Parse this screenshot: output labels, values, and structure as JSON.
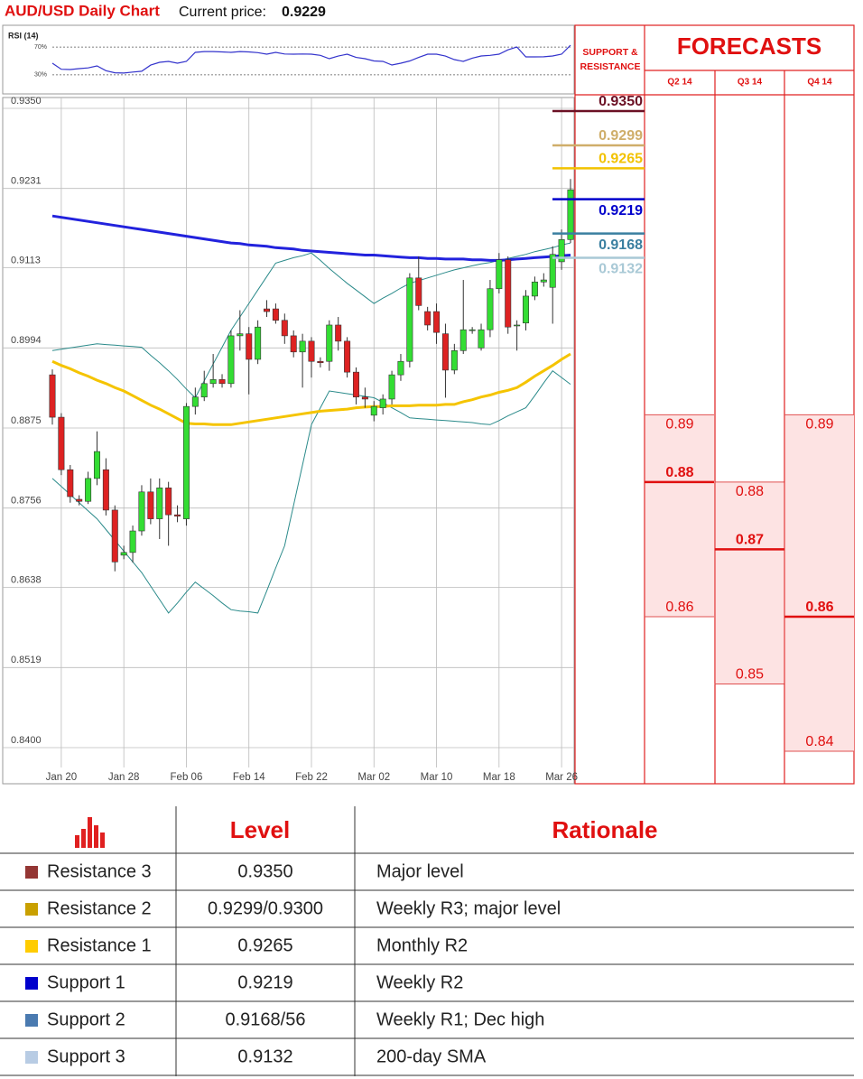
{
  "header": {
    "title": "AUD/USD Daily Chart",
    "price_label": "Current price:",
    "current_price": 0.9229
  },
  "chart_data": [
    {
      "type": "line",
      "title": "RSI (14)",
      "color": "#3333cc",
      "ylim": [
        0,
        100
      ],
      "yticks": [
        {
          "value": 70,
          "label": "70%"
        },
        {
          "value": 30,
          "label": "30%"
        }
      ],
      "values": [
        46.8,
        38,
        37.7,
        39,
        40,
        42.9,
        36,
        33,
        32.6,
        34,
        35.2,
        44,
        48,
        49.4,
        46.8,
        49.4,
        62.3,
        63.5,
        63.5,
        63,
        62.3,
        63.5,
        63,
        62,
        59.7,
        62.3,
        60,
        59.7,
        60,
        59.7,
        58,
        53.2,
        57,
        59.7,
        55,
        53.2,
        50,
        49.4,
        44.2,
        46.8,
        50,
        55,
        59.7,
        59.7,
        57,
        52,
        49.4,
        54,
        57.1,
        58,
        59.7,
        66,
        70,
        55.8,
        55.8,
        56,
        57.1,
        59.7,
        72.6
      ]
    },
    {
      "type": "candlestick",
      "up_color": "#33dd33",
      "down_color": "#dd2222",
      "grid": true,
      "ylim": [
        0.84,
        0.935
      ],
      "yticks": [
        {
          "value": 0.935,
          "label": "0.9350"
        },
        0.9231,
        0.9113,
        0.8994,
        0.8875,
        0.8756,
        0.8638,
        0.8519,
        {
          "value": 0.84,
          "label": "0.8400"
        }
      ],
      "categories": [
        null,
        "Jan 20",
        null,
        null,
        null,
        null,
        null,
        null,
        "Jan 28",
        null,
        null,
        null,
        null,
        null,
        null,
        "Feb 06",
        null,
        null,
        null,
        null,
        null,
        null,
        "Feb 14",
        null,
        null,
        null,
        null,
        null,
        null,
        "Feb 22",
        null,
        null,
        null,
        null,
        null,
        null,
        "Mar 02",
        null,
        null,
        null,
        null,
        null,
        null,
        "Mar 10",
        null,
        null,
        null,
        null,
        null,
        null,
        "Mar 18",
        null,
        null,
        null,
        null,
        null,
        null,
        "Mar 26",
        null
      ],
      "open": [
        0.8954,
        0.8891,
        0.8813,
        0.8769,
        0.8766,
        0.88,
        0.8813,
        0.8753,
        0.8686,
        0.869,
        0.8722,
        0.878,
        0.874,
        0.8786,
        0.8746,
        0.874,
        0.8907,
        0.8921,
        0.8941,
        0.8947,
        0.8941,
        0.9012,
        0.9015,
        0.8977,
        0.9052,
        0.9052,
        0.9035,
        0.9012,
        0.8988,
        0.9004,
        0.8974,
        0.8974,
        0.9028,
        0.9004,
        0.8958,
        0.8921,
        0.8894,
        0.8905,
        0.8918,
        0.8954,
        0.8974,
        0.9098,
        0.9048,
        0.9048,
        0.9015,
        0.8961,
        0.899,
        0.9021,
        0.8994,
        0.9021,
        0.9082,
        0.9125,
        0.9028,
        0.9031,
        0.9071,
        0.9092,
        0.9084,
        0.9122,
        0.9155
      ],
      "high": [
        0.8962,
        0.8897,
        0.882,
        0.8775,
        0.881,
        0.887,
        0.883,
        0.876,
        0.87,
        0.873,
        0.879,
        0.88,
        0.88,
        0.8795,
        0.876,
        0.8912,
        0.8935,
        0.896,
        0.8985,
        0.8955,
        0.902,
        0.905,
        0.9025,
        0.9035,
        0.9065,
        0.906,
        0.9045,
        0.902,
        0.9015,
        0.901,
        0.898,
        0.9035,
        0.904,
        0.901,
        0.8965,
        0.8935,
        0.8915,
        0.8925,
        0.896,
        0.8985,
        0.9105,
        0.913,
        0.9055,
        0.906,
        0.903,
        0.9,
        0.9095,
        0.9025,
        0.903,
        0.9095,
        0.9135,
        0.913,
        0.9035,
        0.908,
        0.91,
        0.9105,
        0.9145,
        0.917,
        0.9245
      ],
      "low": [
        0.888,
        0.8805,
        0.8764,
        0.876,
        0.8762,
        0.879,
        0.8745,
        0.8662,
        0.868,
        0.8675,
        0.8715,
        0.8732,
        0.871,
        0.87,
        0.8735,
        0.873,
        0.8895,
        0.8915,
        0.8935,
        0.8935,
        0.8935,
        0.899,
        0.8925,
        0.897,
        0.904,
        0.903,
        0.9,
        0.898,
        0.8935,
        0.895,
        0.8965,
        0.896,
        0.899,
        0.895,
        0.891,
        0.8905,
        0.8885,
        0.8895,
        0.891,
        0.8945,
        0.8965,
        0.905,
        0.902,
        0.9,
        0.892,
        0.8955,
        0.8985,
        0.9015,
        0.899,
        0.901,
        0.9075,
        0.9015,
        0.899,
        0.902,
        0.9065,
        0.9085,
        0.903,
        0.911,
        0.915
      ],
      "close": [
        0.8891,
        0.8813,
        0.8773,
        0.8766,
        0.88,
        0.884,
        0.8753,
        0.8676,
        0.869,
        0.8722,
        0.878,
        0.874,
        0.8786,
        0.8746,
        0.8744,
        0.8907,
        0.8921,
        0.8941,
        0.8947,
        0.8941,
        0.9012,
        0.9015,
        0.8977,
        0.9025,
        0.9048,
        0.9035,
        0.9012,
        0.8988,
        0.9004,
        0.8974,
        0.8972,
        0.9028,
        0.9004,
        0.8958,
        0.8921,
        0.8918,
        0.8907,
        0.8918,
        0.8954,
        0.8974,
        0.9098,
        0.9057,
        0.9028,
        0.9017,
        0.8961,
        0.899,
        0.9021,
        0.9021,
        0.9021,
        0.9082,
        0.9125,
        0.9025,
        0.9028,
        0.9071,
        0.9092,
        0.9095,
        0.9133,
        0.9155,
        0.9229
      ],
      "overlays": [
        {
          "color": "#2a8a8a",
          "width": 1,
          "values": [
            0.899,
            0.8992,
            0.8994,
            0.8996,
            0.8998,
            0.9,
            0.8999,
            0.8998,
            0.8997,
            0.8996,
            0.8995,
            0.8983,
            0.8972,
            0.896,
            0.8947,
            0.8933,
            0.892,
            0.8945,
            0.897,
            0.8995,
            0.902,
            0.904,
            0.906,
            0.908,
            0.91,
            0.912,
            0.9124,
            0.9128,
            0.9131,
            0.9135,
            0.9124,
            0.9112,
            0.9101,
            0.909,
            0.908,
            0.907,
            0.906,
            0.9068,
            0.9075,
            0.9083,
            0.909,
            0.9094,
            0.9098,
            0.9102,
            0.9106,
            0.911,
            0.9113,
            0.9116,
            0.9119,
            0.9121,
            0.9124,
            0.9127,
            0.913,
            0.9133,
            0.9137,
            0.914,
            0.9143,
            0.9147,
            0.915
          ]
        },
        {
          "color": "#2a8a8a",
          "width": 1,
          "values": [
            0.88,
            0.8788,
            0.8776,
            0.8764,
            0.8752,
            0.874,
            0.8724,
            0.8708,
            0.8692,
            0.8676,
            0.866,
            0.864,
            0.862,
            0.86,
            0.8615,
            0.8631,
            0.8646,
            0.8636,
            0.8626,
            0.8615,
            0.8605,
            0.8603,
            0.8602,
            0.86,
            0.8633,
            0.8667,
            0.87,
            0.876,
            0.882,
            0.888,
            0.8905,
            0.893,
            0.8928,
            0.8926,
            0.8924,
            0.8922,
            0.892,
            0.8913,
            0.8905,
            0.8898,
            0.889,
            0.8889,
            0.8888,
            0.8887,
            0.8886,
            0.8885,
            0.8884,
            0.8883,
            0.8881,
            0.888,
            0.8886,
            0.8893,
            0.8899,
            0.8905,
            0.8923,
            0.8942,
            0.896,
            0.895,
            0.894
          ]
        },
        {
          "color": "#f5c400",
          "width": 3,
          "values": [
            0.8974,
            0.8968,
            0.8963,
            0.8957,
            0.8952,
            0.8946,
            0.8941,
            0.8935,
            0.893,
            0.8923,
            0.8916,
            0.8909,
            0.8903,
            0.8896,
            0.8889,
            0.8882,
            0.8881,
            0.8881,
            0.888,
            0.888,
            0.888,
            0.8882,
            0.8884,
            0.8886,
            0.8888,
            0.889,
            0.8892,
            0.8894,
            0.8896,
            0.8898,
            0.89,
            0.8901,
            0.8902,
            0.8903,
            0.8905,
            0.8906,
            0.8907,
            0.8907,
            0.8908,
            0.8908,
            0.8908,
            0.8909,
            0.8909,
            0.8909,
            0.891,
            0.891,
            0.8914,
            0.8917,
            0.8921,
            0.8924,
            0.8928,
            0.8931,
            0.8935,
            0.8943,
            0.8952,
            0.896,
            0.8968,
            0.8977,
            0.8985
          ]
        },
        {
          "color": "#2222dd",
          "width": 3,
          "values": [
            0.919,
            0.9188,
            0.9186,
            0.9184,
            0.9182,
            0.918,
            0.9178,
            0.9176,
            0.9174,
            0.9172,
            0.917,
            0.9168,
            0.9166,
            0.9164,
            0.9162,
            0.916,
            0.9158,
            0.9156,
            0.9154,
            0.9152,
            0.915,
            0.9149,
            0.9147,
            0.9146,
            0.9145,
            0.9143,
            0.9142,
            0.9141,
            0.9139,
            0.9138,
            0.9137,
            0.9136,
            0.9135,
            0.9134,
            0.9133,
            0.9132,
            0.9132,
            0.9131,
            0.913,
            0.9129,
            0.9128,
            0.9128,
            0.9127,
            0.9127,
            0.9126,
            0.9126,
            0.9126,
            0.9125,
            0.9125,
            0.9124,
            0.9124,
            0.9125,
            0.9126,
            0.9127,
            0.9128,
            0.9129,
            0.913,
            0.9131,
            0.9132
          ]
        }
      ]
    }
  ],
  "support_resistance": {
    "title": "SUPPORT & RESISTANCE",
    "levels": [
      {
        "value": 0.935,
        "label": "0.9350",
        "color": "#6b1024"
      },
      {
        "value": 0.9299,
        "color": "#cfae6a"
      },
      {
        "value": 0.9265,
        "color": "#f2c200"
      },
      {
        "value": 0.9219,
        "color": "#0000cc"
      },
      {
        "value": 0.9168,
        "color": "#3a7fa0"
      },
      {
        "value": 0.9132,
        "color": "#a9c9d6"
      }
    ]
  },
  "forecasts": {
    "title": "FORECASTS",
    "quarters": [
      {
        "label": "Q2 14",
        "high": 0.89,
        "mid": 0.88,
        "low": 0.86
      },
      {
        "label": "Q3 14",
        "high": 0.88,
        "mid": 0.87,
        "low": 0.85
      },
      {
        "label": "Q4 14",
        "high": 0.89,
        "mid": 0.86,
        "low": 0.84
      }
    ]
  },
  "table": {
    "header": [
      "Level",
      "Rationale"
    ],
    "rows": [
      {
        "color": "#943634",
        "name": "Resistance 3",
        "level": "0.9350",
        "rationale": "Major level"
      },
      {
        "color": "#c9a000",
        "name": "Resistance 2",
        "level": "0.9299/0.9300",
        "rationale": "Weekly R3; major level"
      },
      {
        "color": "#ffcc00",
        "name": "Resistance 1",
        "level": "0.9265",
        "rationale": "Monthly R2"
      },
      {
        "color": "#0000cc",
        "name": "Support 1",
        "level": "0.9219",
        "rationale": "Weekly R2"
      },
      {
        "color": "#4a7ab0",
        "name": "Support 2",
        "level": "0.9168/56",
        "rationale": "Weekly R1; Dec high"
      },
      {
        "color": "#b8cce4",
        "name": "Support 3",
        "level": "0.9132",
        "rationale": "200-day SMA"
      }
    ]
  }
}
